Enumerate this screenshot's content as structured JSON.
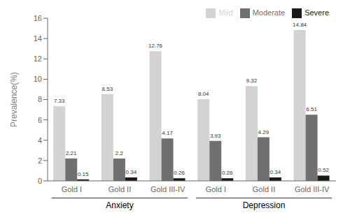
{
  "chart_data": {
    "type": "bar",
    "categories": [
      "Gold I",
      "Gold II",
      "Gold III-IV",
      "Gold I",
      "Gold II",
      "Gold III-IV"
    ],
    "series": [
      {
        "name": "Mild",
        "color": "#d3d3d3",
        "values": [
          7.33,
          8.53,
          12.76,
          8.04,
          9.32,
          14.84
        ]
      },
      {
        "name": "Moderate",
        "color": "#707070",
        "values": [
          2.21,
          2.2,
          4.17,
          3.93,
          4.29,
          6.51
        ]
      },
      {
        "name": "Severe",
        "color": "#1a1a1a",
        "values": [
          0.15,
          0.34,
          0.26,
          0.26,
          0.34,
          0.52
        ]
      }
    ],
    "ylabel": "Prevalence(%)",
    "ylim": [
      0,
      16
    ],
    "yticks": [
      0,
      2,
      4,
      6,
      8,
      10,
      12,
      14,
      16
    ],
    "annotations": [
      "Anxiety",
      "Depression"
    ],
    "legend": "upper right",
    "data_labels": true
  }
}
